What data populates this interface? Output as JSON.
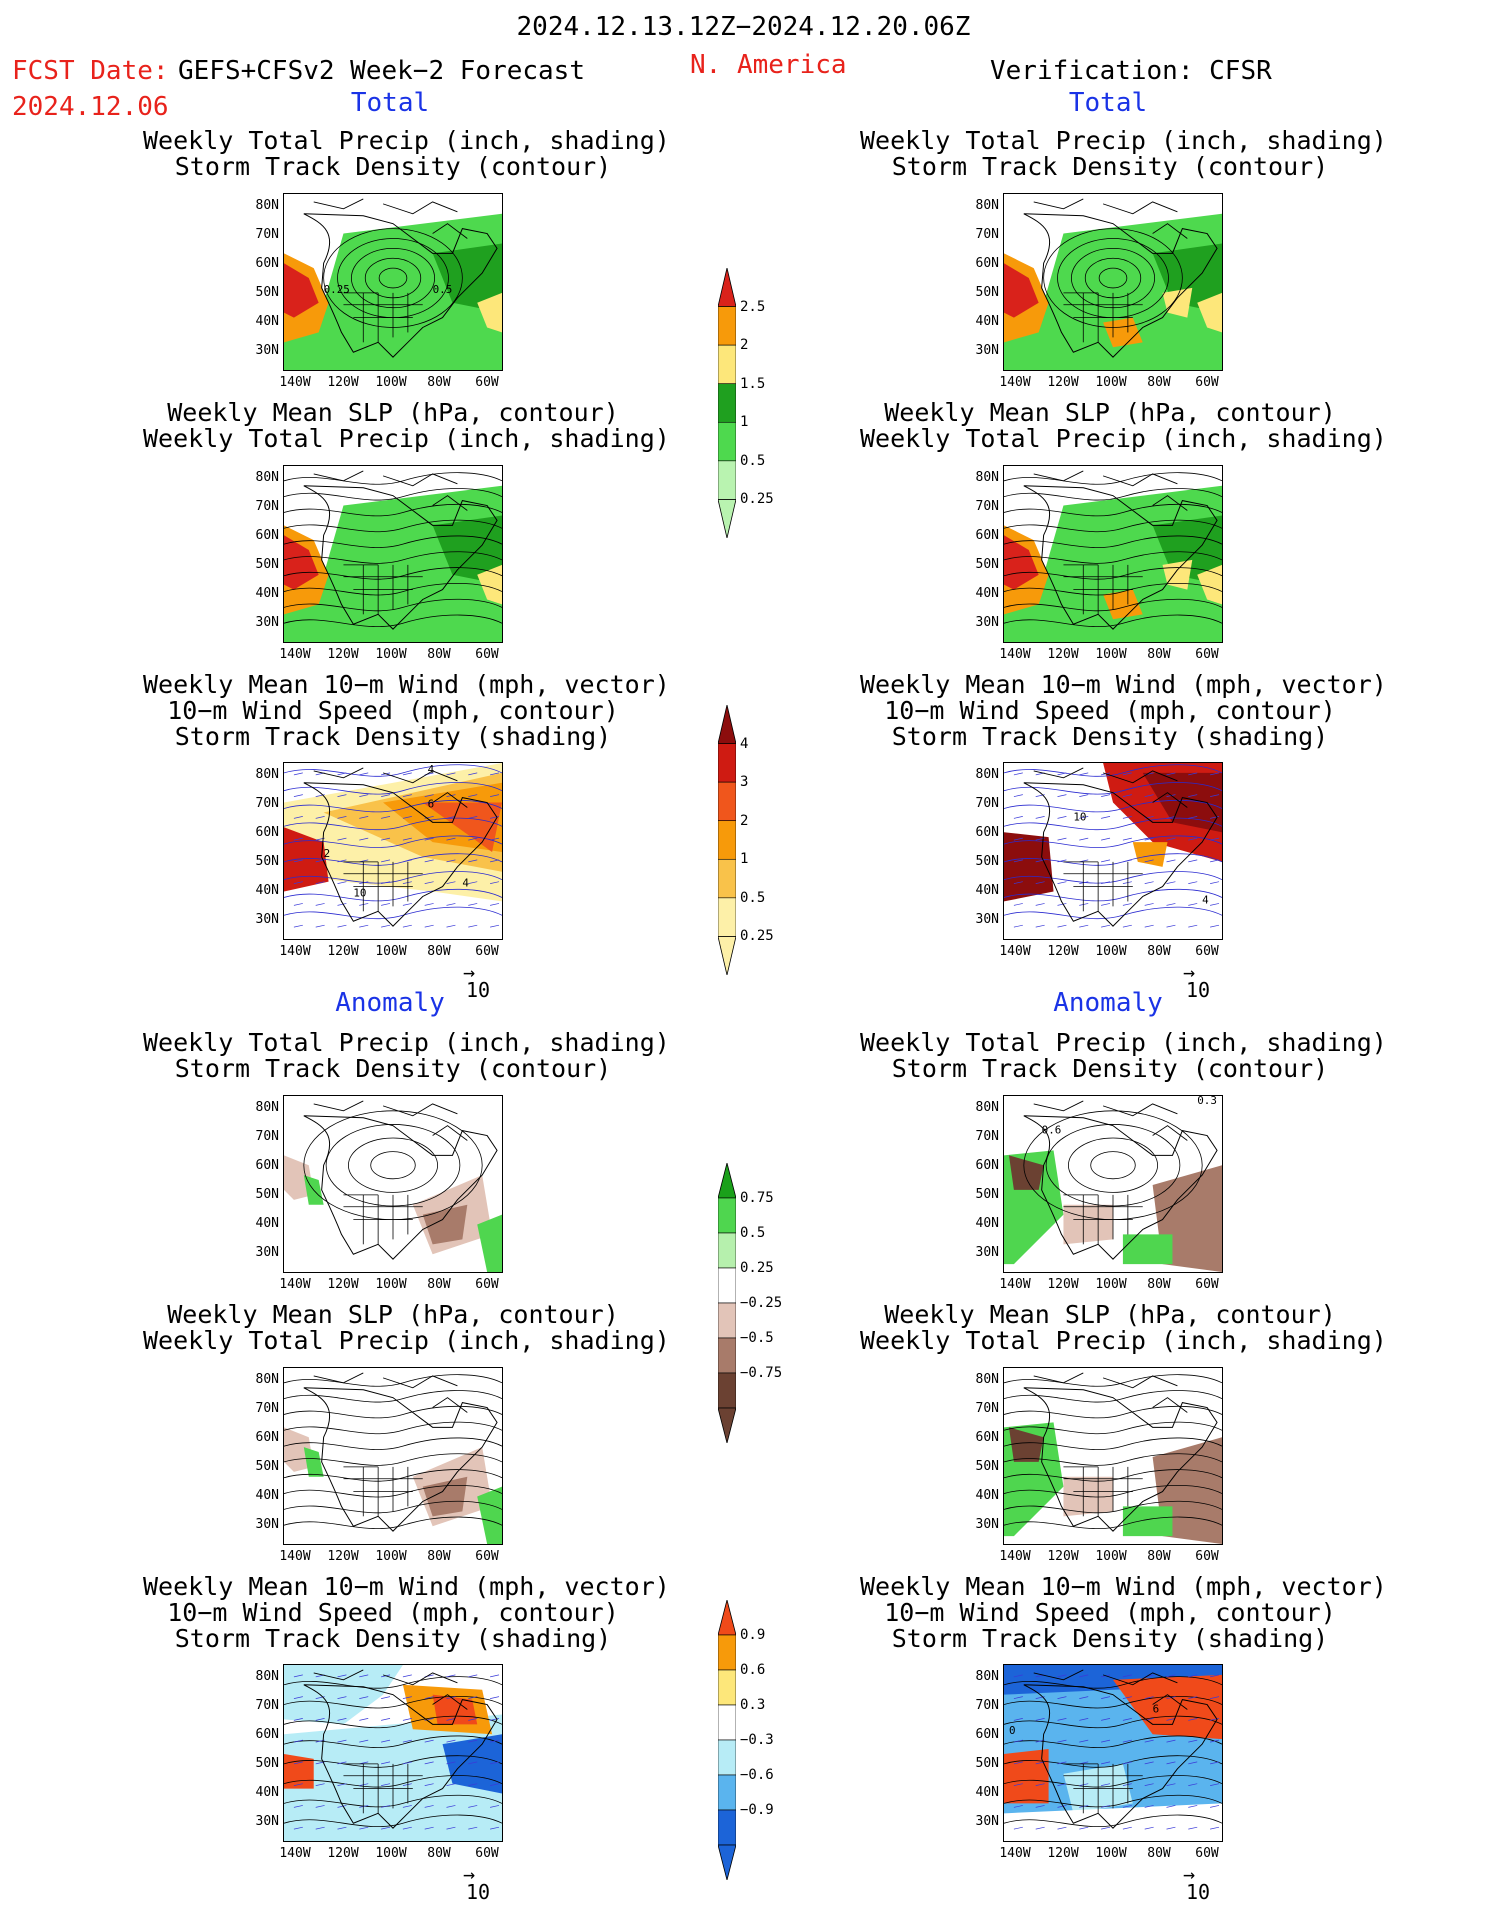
{
  "header": {
    "date_range": "2024.12.13.12Z−2024.12.20.06Z",
    "fcst_date_label": "FCST Date:",
    "fcst_date": "2024.12.06",
    "model": "GEFS+CFSv2 Week−2 Forecast",
    "region": "N. America",
    "verification": "Verification: CFSR"
  },
  "sections": {
    "total": "Total",
    "anomaly": "Anomaly"
  },
  "titles": {
    "precip_storm": "Weekly Total Precip (inch, shading)\nStorm Track Density (contour)",
    "slp_precip": "Weekly Mean SLP (hPa, contour)\nWeekly Total Precip (inch, shading)",
    "wind_storm": "Weekly Mean 10−m Wind (mph, vector)\n10−m Wind Speed (mph, contour)\nStorm Track Density (shading)"
  },
  "axes": {
    "lat": [
      "80N",
      "70N",
      "60N",
      "50N",
      "40N",
      "30N"
    ],
    "lon": [
      "140W",
      "120W",
      "100W",
      "80W",
      "60W"
    ]
  },
  "vector_ref": "10",
  "colorbars": {
    "precip_total": {
      "labels": [
        "2.5",
        "2",
        "1.5",
        "1",
        "0.5",
        "0.25"
      ],
      "colors": [
        "#d9221b",
        "#f79a0a",
        "#fde77a",
        "#1fa01f",
        "#4ed94e",
        "#b9f3b0"
      ]
    },
    "storm_total": {
      "labels": [
        "4",
        "3",
        "2",
        "1",
        "0.5",
        "0.25"
      ],
      "colors": [
        "#8c0d0d",
        "#cf1b12",
        "#f0561c",
        "#f79a0a",
        "#f9c24a",
        "#fdf0a8"
      ]
    },
    "precip_anom": {
      "labels": [
        "0.75",
        "0.5",
        "0.25",
        "−0.25",
        "−0.5",
        "−0.75"
      ],
      "colors": [
        "#1aa01a",
        "#4fd64f",
        "#b6f0ad",
        "#ffffff",
        "#e2c4b8",
        "#a87b6a",
        "#6b4132"
      ]
    },
    "storm_anom": {
      "labels": [
        "0.9",
        "0.6",
        "0.3",
        "−0.3",
        "−0.6",
        "−0.9"
      ],
      "colors": [
        "#f04a1a",
        "#f79a0a",
        "#fde77a",
        "#ffffff",
        "#b7ecf6",
        "#5ab4ee",
        "#1c64d8"
      ]
    }
  },
  "panel_labels": {
    "p1_fcst": [
      "0.25",
      "0.5"
    ],
    "wind_fcst": [
      "4",
      "6",
      "2",
      "4",
      "10"
    ],
    "wind_verif": [
      "10",
      "4"
    ],
    "anom_verif": [
      "0.6",
      "0.3"
    ],
    "anom_wind_verif": [
      "0",
      "6"
    ]
  },
  "chart_data": [
    {
      "type": "heatmap",
      "title": "Weekly Total Precip (inch, shading) / Storm Track Density (contour)",
      "panel": "forecast-total",
      "levels": [
        0.25,
        0.5,
        1,
        1.5,
        2,
        2.5
      ]
    },
    {
      "type": "heatmap",
      "title": "Weekly Total Precip (inch, shading) / Storm Track Density (contour)",
      "panel": "verification-total",
      "levels": [
        0.25,
        0.5,
        1,
        1.5,
        2,
        2.5
      ]
    },
    {
      "type": "heatmap",
      "title": "Weekly Mean SLP (hPa, contour) / Weekly Total Precip (inch, shading)",
      "panel": "forecast-total",
      "levels": [
        0.25,
        0.5,
        1,
        1.5,
        2,
        2.5
      ]
    },
    {
      "type": "heatmap",
      "title": "Weekly Mean SLP (hPa, contour) / Weekly Total Precip (inch, shading)",
      "panel": "verification-total",
      "levels": [
        0.25,
        0.5,
        1,
        1.5,
        2,
        2.5
      ]
    },
    {
      "type": "heatmap",
      "title": "Weekly Mean 10−m Wind / 10−m Wind Speed / Storm Track Density",
      "panel": "forecast-total",
      "levels": [
        0.25,
        0.5,
        1,
        2,
        3,
        4
      ]
    },
    {
      "type": "heatmap",
      "title": "Weekly Mean 10−m Wind / 10−m Wind Speed / Storm Track Density",
      "panel": "verification-total",
      "levels": [
        0.25,
        0.5,
        1,
        2,
        3,
        4
      ]
    },
    {
      "type": "heatmap",
      "title": "Weekly Total Precip anomaly / Storm Track Density",
      "panel": "forecast-anomaly",
      "levels": [
        -0.75,
        -0.5,
        -0.25,
        0.25,
        0.5,
        0.75
      ]
    },
    {
      "type": "heatmap",
      "title": "Weekly Total Precip anomaly / Storm Track Density",
      "panel": "verification-anomaly",
      "levels": [
        -0.75,
        -0.5,
        -0.25,
        0.25,
        0.5,
        0.75
      ]
    },
    {
      "type": "heatmap",
      "title": "Weekly Mean SLP / Weekly Total Precip anomaly",
      "panel": "forecast-anomaly",
      "levels": [
        -0.75,
        -0.5,
        -0.25,
        0.25,
        0.5,
        0.75
      ]
    },
    {
      "type": "heatmap",
      "title": "Weekly Mean SLP / Weekly Total Precip anomaly",
      "panel": "verification-anomaly",
      "levels": [
        -0.75,
        -0.5,
        -0.25,
        0.25,
        0.5,
        0.75
      ]
    },
    {
      "type": "heatmap",
      "title": "Weekly Mean 10−m Wind / Storm Track Density anomaly",
      "panel": "forecast-anomaly",
      "levels": [
        -0.9,
        -0.6,
        -0.3,
        0.3,
        0.6,
        0.9
      ]
    },
    {
      "type": "heatmap",
      "title": "Weekly Mean 10−m Wind / Storm Track Density anomaly",
      "panel": "verification-anomaly",
      "levels": [
        -0.9,
        -0.6,
        -0.3,
        0.3,
        0.6,
        0.9
      ]
    }
  ]
}
